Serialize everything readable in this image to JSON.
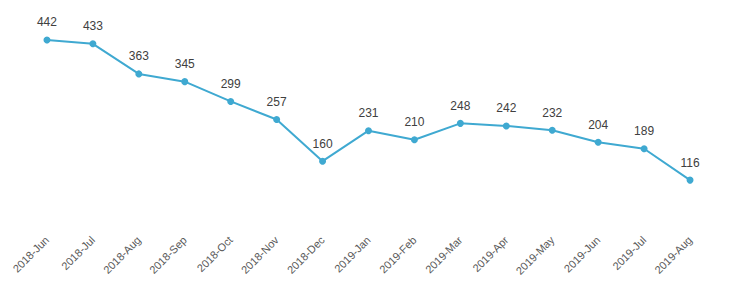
{
  "chart_data": {
    "type": "line",
    "categories": [
      "2018-Jun",
      "2018-Jul",
      "2018-Aug",
      "2018-Sep",
      "2018-Oct",
      "2018-Nov",
      "2018-Dec",
      "2019-Jan",
      "2019-Feb",
      "2019-Mar",
      "2019-Apr",
      "2019-May",
      "2019-Jun",
      "2019-Jul",
      "2019-Aug"
    ],
    "values": [
      442,
      433,
      363,
      345,
      299,
      257,
      160,
      231,
      210,
      248,
      242,
      232,
      204,
      189,
      116
    ],
    "color": "#3fa9d1",
    "ylim": [
      0,
      500
    ],
    "grid": false,
    "data_labels": true,
    "tick_labels": "x",
    "marker": "circle"
  }
}
